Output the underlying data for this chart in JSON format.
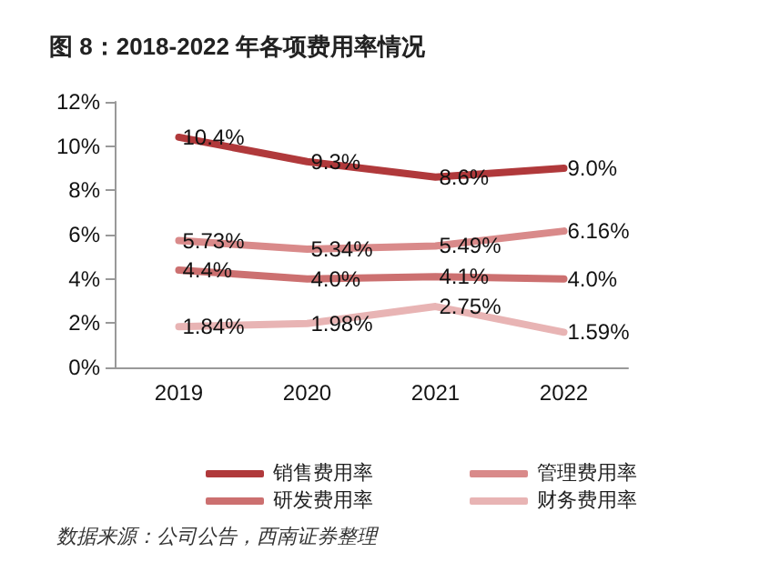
{
  "chart_data": {
    "type": "line",
    "title": "图 8：2018-2022 年各项费用率情况",
    "categories": [
      "2019",
      "2020",
      "2021",
      "2022"
    ],
    "series": [
      {
        "name": "销售费用率",
        "color": "#b0393b",
        "values": [
          10.4,
          9.3,
          8.6,
          9.0
        ],
        "value_labels": [
          "10.4%",
          "9.3%",
          "8.6%",
          "9.0%"
        ]
      },
      {
        "name": "管理费用率",
        "color": "#d98a8a",
        "values": [
          5.73,
          5.34,
          5.49,
          6.16
        ],
        "value_labels": [
          "5.73%",
          "5.34%",
          "5.49%",
          "6.16%"
        ]
      },
      {
        "name": "研发费用率",
        "color": "#cc7070",
        "values": [
          4.4,
          4.0,
          4.1,
          4.0
        ],
        "value_labels": [
          "4.4%",
          "4.0%",
          "4.1%",
          "4.0%"
        ]
      },
      {
        "name": "财务费用率",
        "color": "#e8b4b4",
        "values": [
          1.84,
          1.98,
          2.75,
          1.59
        ],
        "value_labels": [
          "1.84%",
          "1.98%",
          "2.75%",
          "1.59%"
        ]
      }
    ],
    "ylim": [
      0,
      12
    ],
    "yticks": [
      {
        "value": 0,
        "label": "0%"
      },
      {
        "value": 2,
        "label": "2%"
      },
      {
        "value": 4,
        "label": "4%"
      },
      {
        "value": 6,
        "label": "6%"
      },
      {
        "value": 8,
        "label": "8%"
      },
      {
        "value": 10,
        "label": "10%"
      },
      {
        "value": 12,
        "label": "12%"
      }
    ],
    "grid": false,
    "legend": "bottom",
    "marker": "none",
    "line_style": "solid",
    "annotations": [
      "数据来源：公司公告，西南证券整理"
    ]
  }
}
